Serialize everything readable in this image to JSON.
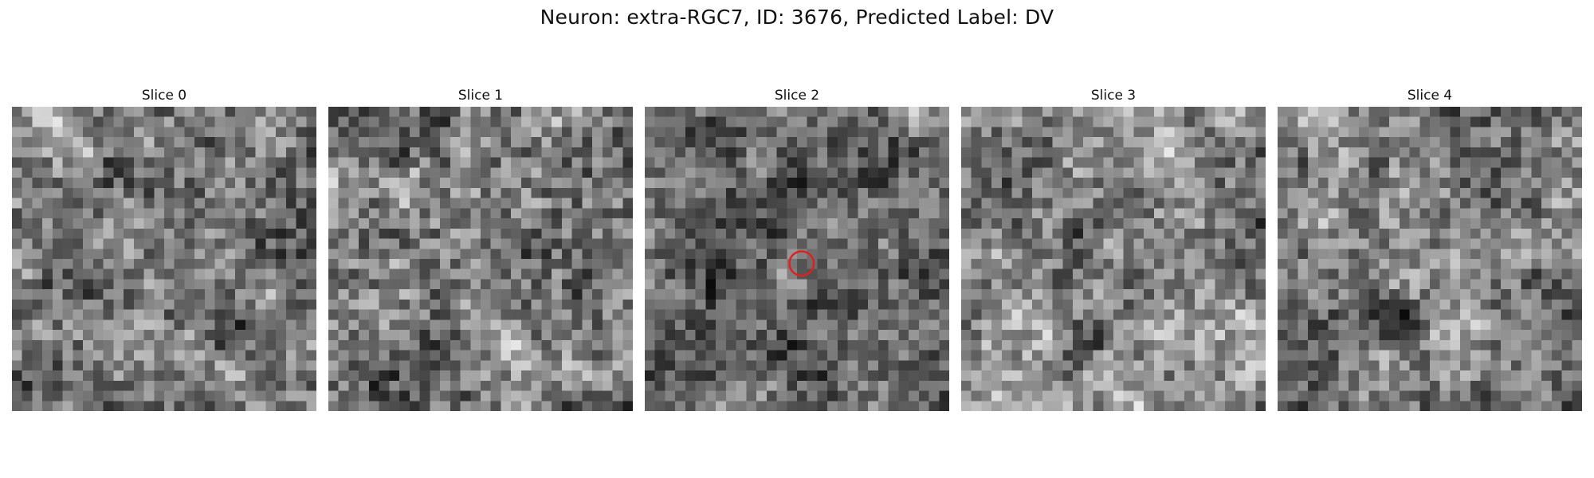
{
  "title": "Neuron: extra-RGC7, ID: 3676, Predicted Label: DV",
  "grid_size": 30,
  "marker_color": "#e02020",
  "slices": [
    {
      "label": "Slice 0",
      "seed": 11,
      "mean": 0.52,
      "marker": null
    },
    {
      "label": "Slice 1",
      "seed": 23,
      "mean": 0.52,
      "marker": null
    },
    {
      "label": "Slice 2",
      "seed": 37,
      "mean": 0.45,
      "marker": {
        "cx": 0.515,
        "cy": 0.515,
        "r": 0.04
      }
    },
    {
      "label": "Slice 3",
      "seed": 41,
      "mean": 0.56,
      "marker": null
    },
    {
      "label": "Slice 4",
      "seed": 53,
      "mean": 0.45,
      "marker": null
    }
  ]
}
